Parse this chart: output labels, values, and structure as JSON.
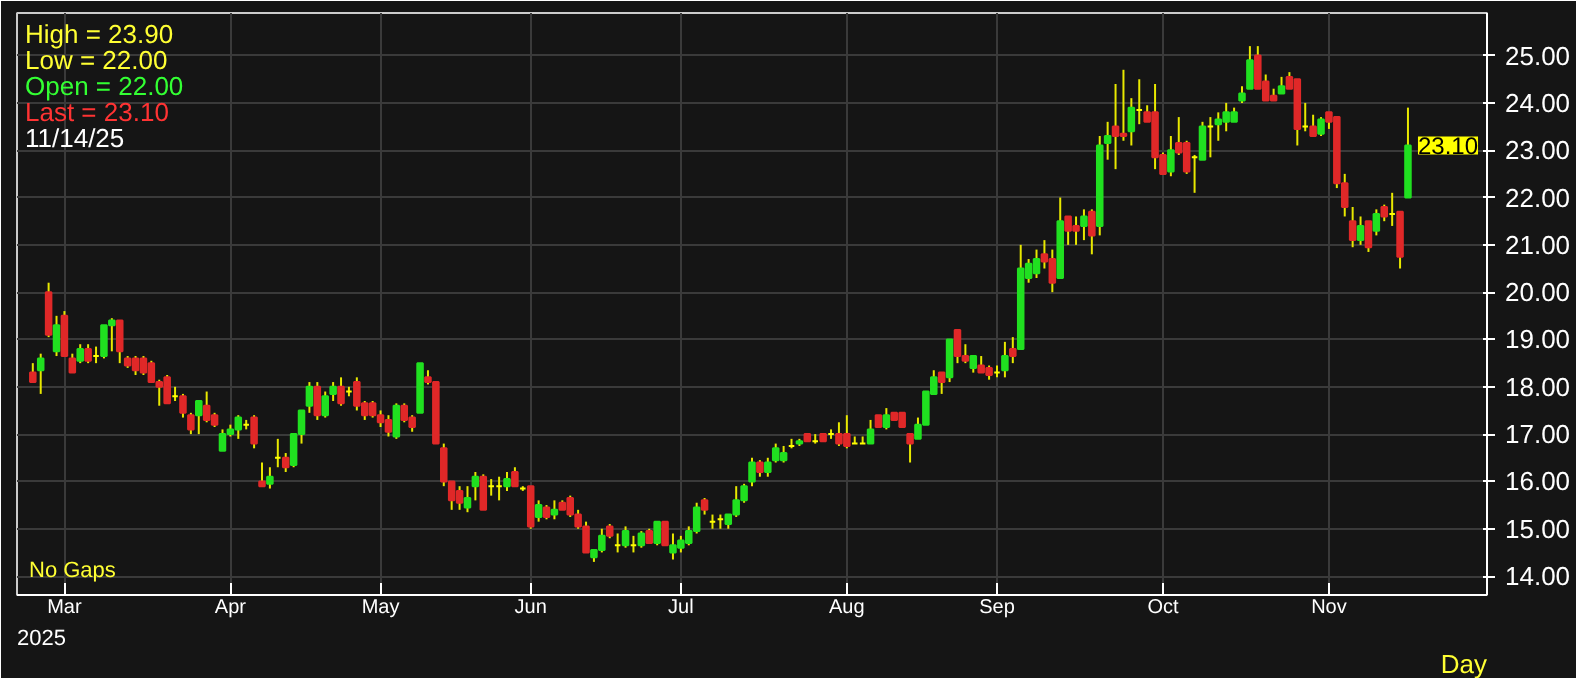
{
  "chart_data": {
    "type": "candlestick",
    "categories": [
      null,
      null,
      null,
      null,
      "Mar",
      null,
      null,
      null,
      null,
      null,
      null,
      null,
      null,
      null,
      null,
      null,
      null,
      null,
      null,
      null,
      null,
      null,
      null,
      null,
      null,
      "Apr",
      null,
      null,
      null,
      null,
      null,
      null,
      null,
      null,
      null,
      null,
      null,
      null,
      null,
      null,
      null,
      null,
      null,
      null,
      "May",
      null,
      null,
      null,
      null,
      null,
      null,
      null,
      null,
      null,
      null,
      null,
      null,
      null,
      null,
      null,
      null,
      null,
      null,
      "Jun",
      null,
      null,
      null,
      null,
      null,
      null,
      null,
      null,
      null,
      null,
      null,
      null,
      null,
      null,
      null,
      null,
      null,
      null,
      "Jul",
      null,
      null,
      null,
      null,
      null,
      null,
      null,
      null,
      null,
      null,
      null,
      null,
      null,
      null,
      null,
      null,
      null,
      null,
      null,
      null,
      "Aug",
      null,
      null,
      null,
      null,
      null,
      null,
      null,
      null,
      null,
      null,
      null,
      null,
      null,
      null,
      null,
      null,
      null,
      null,
      "Sep",
      null,
      null,
      null,
      null,
      null,
      null,
      null,
      null,
      null,
      null,
      null,
      null,
      null,
      null,
      null,
      null,
      null,
      null,
      null,
      null,
      "Oct",
      null,
      null,
      null,
      null,
      null,
      null,
      null,
      null,
      null,
      null,
      null,
      null,
      null,
      null,
      null,
      null,
      null,
      null,
      null,
      null,
      "Nov",
      null,
      null,
      null,
      null,
      null,
      null,
      null,
      null,
      null,
      null
    ],
    "ohlc": [
      [
        18.3,
        18.5,
        18.1,
        18.1
      ],
      [
        18.35,
        18.7,
        17.85,
        18.6
      ],
      [
        20.0,
        20.2,
        19.05,
        19.1
      ],
      [
        18.75,
        19.5,
        18.65,
        19.3
      ],
      [
        19.5,
        19.6,
        18.65,
        18.65
      ],
      [
        18.6,
        18.7,
        18.3,
        18.3
      ],
      [
        18.55,
        18.9,
        18.5,
        18.8
      ],
      [
        18.8,
        18.9,
        18.5,
        18.55
      ],
      [
        18.65,
        18.85,
        18.5,
        18.65
      ],
      [
        18.65,
        19.3,
        18.6,
        19.3
      ],
      [
        19.3,
        19.45,
        18.75,
        19.4
      ],
      [
        19.4,
        19.4,
        18.5,
        18.75
      ],
      [
        18.6,
        18.65,
        18.4,
        18.45
      ],
      [
        18.6,
        18.65,
        18.25,
        18.35
      ],
      [
        18.6,
        18.65,
        18.25,
        18.3
      ],
      [
        18.5,
        18.55,
        18.1,
        18.1
      ],
      [
        18.1,
        18.15,
        17.6,
        18.0
      ],
      [
        18.2,
        18.25,
        17.65,
        17.65
      ],
      [
        17.8,
        18.0,
        17.7,
        17.8
      ],
      [
        17.8,
        17.85,
        17.35,
        17.45
      ],
      [
        17.4,
        17.45,
        17.0,
        17.1
      ],
      [
        17.4,
        17.7,
        17.0,
        17.7
      ],
      [
        17.6,
        17.9,
        17.25,
        17.3
      ],
      [
        17.4,
        17.45,
        17.15,
        17.2
      ],
      [
        16.65,
        17.1,
        16.65,
        17.0
      ],
      [
        17.0,
        17.2,
        16.95,
        17.1
      ],
      [
        17.1,
        17.4,
        16.9,
        17.35
      ],
      [
        17.2,
        17.3,
        17.1,
        17.2
      ],
      [
        17.35,
        17.4,
        16.7,
        16.8
      ],
      [
        16.0,
        16.4,
        15.9,
        15.9
      ],
      [
        15.95,
        16.3,
        15.85,
        16.1
      ],
      [
        16.5,
        16.9,
        16.3,
        16.5
      ],
      [
        16.5,
        16.6,
        16.2,
        16.3
      ],
      [
        16.35,
        17.0,
        16.3,
        17.0
      ],
      [
        17.0,
        17.5,
        16.8,
        17.5
      ],
      [
        17.6,
        18.1,
        17.45,
        18.0
      ],
      [
        18.0,
        18.1,
        17.3,
        17.4
      ],
      [
        17.4,
        17.9,
        17.35,
        17.8
      ],
      [
        17.85,
        18.1,
        17.7,
        18.0
      ],
      [
        18.0,
        18.2,
        17.6,
        17.65
      ],
      [
        17.9,
        18.0,
        17.8,
        17.9
      ],
      [
        18.1,
        18.2,
        17.5,
        17.6
      ],
      [
        17.65,
        17.7,
        17.3,
        17.4
      ],
      [
        17.65,
        17.7,
        17.35,
        17.4
      ],
      [
        17.4,
        17.5,
        17.15,
        17.25
      ],
      [
        17.3,
        17.4,
        16.95,
        17.05
      ],
      [
        16.95,
        17.65,
        16.9,
        17.6
      ],
      [
        17.6,
        17.65,
        17.25,
        17.3
      ],
      [
        17.35,
        17.4,
        17.05,
        17.15
      ],
      [
        17.45,
        18.5,
        17.45,
        18.5
      ],
      [
        18.2,
        18.35,
        18.05,
        18.1
      ],
      [
        18.1,
        18.1,
        16.8,
        16.8
      ],
      [
        16.7,
        16.8,
        15.9,
        16.0
      ],
      [
        16.0,
        16.0,
        15.4,
        15.6
      ],
      [
        15.8,
        15.9,
        15.4,
        15.55
      ],
      [
        15.45,
        15.9,
        15.35,
        15.65
      ],
      [
        15.9,
        16.2,
        15.6,
        16.1
      ],
      [
        16.1,
        16.15,
        15.4,
        15.4
      ],
      [
        15.9,
        16.05,
        15.7,
        15.9
      ],
      [
        15.9,
        16.1,
        15.6,
        15.9
      ],
      [
        15.9,
        16.2,
        15.8,
        16.05
      ],
      [
        16.2,
        16.3,
        15.9,
        15.9
      ],
      [
        15.85,
        15.9,
        15.8,
        15.85
      ],
      [
        15.9,
        15.9,
        15.0,
        15.05
      ],
      [
        15.25,
        15.6,
        15.15,
        15.5
      ],
      [
        15.45,
        15.5,
        15.2,
        15.25
      ],
      [
        15.3,
        15.6,
        15.2,
        15.4
      ],
      [
        15.55,
        15.6,
        15.4,
        15.4
      ],
      [
        15.65,
        15.7,
        15.25,
        15.3
      ],
      [
        15.3,
        15.4,
        15.0,
        15.05
      ],
      [
        15.05,
        15.15,
        14.5,
        14.5
      ],
      [
        14.4,
        14.55,
        14.3,
        14.55
      ],
      [
        14.55,
        15.0,
        14.5,
        14.85
      ],
      [
        15.05,
        15.1,
        14.8,
        14.85
      ],
      [
        14.65,
        14.9,
        14.5,
        14.65
      ],
      [
        14.65,
        15.05,
        14.6,
        14.95
      ],
      [
        14.65,
        14.85,
        14.5,
        14.65
      ],
      [
        14.65,
        14.95,
        14.6,
        14.9
      ],
      [
        14.95,
        15.0,
        14.7,
        14.7
      ],
      [
        14.7,
        15.15,
        14.65,
        15.15
      ],
      [
        15.15,
        15.15,
        14.65,
        14.65
      ],
      [
        14.5,
        14.9,
        14.35,
        14.65
      ],
      [
        14.6,
        14.85,
        14.5,
        14.75
      ],
      [
        14.7,
        15.05,
        14.65,
        14.95
      ],
      [
        14.95,
        15.55,
        14.9,
        15.45
      ],
      [
        15.6,
        15.65,
        15.3,
        15.4
      ],
      [
        15.15,
        15.3,
        15.0,
        15.15
      ],
      [
        15.2,
        15.3,
        15.0,
        15.2
      ],
      [
        15.1,
        15.3,
        15.0,
        15.3
      ],
      [
        15.3,
        15.9,
        15.25,
        15.6
      ],
      [
        15.6,
        15.95,
        15.55,
        15.9
      ],
      [
        16.0,
        16.5,
        15.9,
        16.4
      ],
      [
        16.4,
        16.45,
        16.1,
        16.2
      ],
      [
        16.2,
        16.5,
        16.1,
        16.4
      ],
      [
        16.45,
        16.8,
        16.4,
        16.7
      ],
      [
        16.45,
        16.75,
        16.4,
        16.6
      ],
      [
        16.75,
        16.9,
        16.7,
        16.75
      ],
      [
        16.8,
        16.9,
        16.75,
        16.85
      ],
      [
        17.0,
        17.0,
        16.85,
        16.85
      ],
      [
        16.85,
        17.0,
        16.8,
        16.85
      ],
      [
        17.0,
        17.0,
        16.85,
        16.85
      ],
      [
        17.0,
        17.1,
        16.9,
        17.0
      ],
      [
        17.0,
        17.25,
        16.75,
        16.8
      ],
      [
        17.0,
        17.4,
        16.7,
        16.75
      ],
      [
        16.8,
        16.95,
        16.8,
        16.8
      ],
      [
        16.8,
        16.95,
        16.8,
        16.8
      ],
      [
        16.8,
        17.3,
        16.8,
        17.1
      ],
      [
        17.4,
        17.4,
        17.15,
        17.15
      ],
      [
        17.15,
        17.55,
        17.1,
        17.4
      ],
      [
        17.45,
        17.45,
        17.3,
        17.3
      ],
      [
        17.45,
        17.45,
        17.15,
        17.15
      ],
      [
        17.0,
        17.0,
        16.4,
        16.8
      ],
      [
        16.9,
        17.35,
        16.9,
        17.2
      ],
      [
        17.2,
        17.9,
        17.2,
        17.9
      ],
      [
        17.85,
        18.35,
        17.85,
        18.2
      ],
      [
        18.3,
        18.3,
        17.85,
        18.1
      ],
      [
        18.2,
        19.0,
        18.1,
        19.0
      ],
      [
        19.2,
        19.2,
        18.5,
        18.65
      ],
      [
        18.65,
        18.9,
        18.5,
        18.55
      ],
      [
        18.4,
        18.65,
        18.3,
        18.65
      ],
      [
        18.45,
        18.65,
        18.3,
        18.3
      ],
      [
        18.4,
        18.45,
        18.15,
        18.25
      ],
      [
        18.3,
        18.45,
        18.2,
        18.3
      ],
      [
        18.35,
        18.95,
        18.2,
        18.65
      ],
      [
        18.8,
        19.05,
        18.5,
        18.65
      ],
      [
        18.8,
        21.0,
        18.8,
        20.5
      ],
      [
        20.3,
        20.7,
        20.2,
        20.6
      ],
      [
        20.4,
        20.9,
        20.3,
        20.7
      ],
      [
        20.8,
        21.1,
        20.5,
        20.65
      ],
      [
        20.7,
        20.9,
        20.0,
        20.2
      ],
      [
        20.3,
        22.0,
        20.3,
        21.5
      ],
      [
        21.6,
        21.6,
        21.0,
        21.3
      ],
      [
        21.4,
        21.6,
        21.0,
        21.3
      ],
      [
        21.4,
        21.75,
        21.1,
        21.6
      ],
      [
        21.7,
        21.75,
        20.8,
        21.2
      ],
      [
        21.4,
        23.3,
        21.2,
        23.1
      ],
      [
        23.15,
        23.6,
        22.8,
        23.3
      ],
      [
        23.5,
        24.4,
        22.6,
        23.3
      ],
      [
        23.35,
        24.7,
        23.2,
        23.3
      ],
      [
        23.4,
        24.1,
        23.1,
        23.9
      ],
      [
        23.85,
        24.5,
        23.55,
        23.85
      ],
      [
        23.8,
        23.95,
        23.6,
        23.6
      ],
      [
        23.8,
        24.4,
        22.6,
        22.85
      ],
      [
        22.9,
        22.95,
        22.5,
        22.5
      ],
      [
        22.55,
        23.3,
        22.45,
        23.0
      ],
      [
        23.15,
        23.7,
        22.9,
        22.95
      ],
      [
        23.15,
        23.2,
        22.5,
        22.55
      ],
      [
        22.85,
        22.9,
        22.1,
        22.85
      ],
      [
        22.8,
        23.6,
        22.8,
        23.5
      ],
      [
        23.5,
        23.7,
        22.85,
        23.5
      ],
      [
        23.55,
        23.8,
        23.2,
        23.65
      ],
      [
        23.6,
        24.0,
        23.4,
        23.8
      ],
      [
        23.6,
        23.9,
        23.6,
        23.8
      ],
      [
        24.05,
        24.35,
        24.0,
        24.2
      ],
      [
        24.3,
        25.2,
        24.3,
        24.9
      ],
      [
        25.0,
        25.2,
        24.3,
        24.3
      ],
      [
        24.45,
        24.6,
        24.05,
        24.05
      ],
      [
        24.15,
        24.3,
        24.05,
        24.05
      ],
      [
        24.2,
        24.55,
        24.2,
        24.35
      ],
      [
        24.55,
        24.65,
        24.3,
        24.3
      ],
      [
        24.5,
        24.5,
        23.1,
        23.45
      ],
      [
        23.5,
        24.0,
        23.4,
        23.5
      ],
      [
        23.5,
        23.75,
        23.3,
        23.3
      ],
      [
        23.35,
        23.7,
        23.3,
        23.65
      ],
      [
        23.8,
        23.8,
        23.45,
        23.6
      ],
      [
        23.7,
        23.7,
        22.2,
        22.3
      ],
      [
        22.3,
        22.5,
        21.6,
        21.8
      ],
      [
        21.5,
        21.8,
        20.95,
        21.1
      ],
      [
        21.1,
        21.6,
        21.0,
        21.4
      ],
      [
        21.5,
        21.5,
        20.85,
        20.95
      ],
      [
        21.3,
        21.75,
        21.2,
        21.65
      ],
      [
        21.8,
        21.85,
        21.5,
        21.6
      ],
      [
        21.65,
        22.1,
        21.4,
        21.65
      ],
      [
        21.7,
        21.7,
        20.5,
        20.75
      ],
      [
        22.0,
        23.9,
        22.0,
        23.1
      ]
    ],
    "colors": [
      "#e02828",
      "#20e020",
      "#e02828",
      "#20e020",
      "#e02828",
      "#e02828",
      "#20e020",
      "#e02828",
      "#ffff00",
      "#20e020",
      "#20e020",
      "#e02828",
      "#e02828",
      "#e02828",
      "#e02828",
      "#e02828",
      "#e02828",
      "#e02828",
      "#ffff00",
      "#e02828",
      "#e02828",
      "#20e020",
      "#e02828",
      "#e02828",
      "#20e020",
      "#20e020",
      "#20e020",
      "#ffff00",
      "#e02828",
      "#e02828",
      "#20e020",
      "#ffff00",
      "#e02828",
      "#20e020",
      "#20e020",
      "#20e020",
      "#e02828",
      "#20e020",
      "#20e020",
      "#e02828",
      "#ffff00",
      "#e02828",
      "#e02828",
      "#e02828",
      "#e02828",
      "#e02828",
      "#20e020",
      "#e02828",
      "#e02828",
      "#20e020",
      "#e02828",
      "#e02828",
      "#e02828",
      "#e02828",
      "#e02828",
      "#20e020",
      "#20e020",
      "#e02828",
      "#ffff00",
      "#ffff00",
      "#20e020",
      "#e02828",
      "#ffff00",
      "#e02828",
      "#20e020",
      "#e02828",
      "#20e020",
      "#e02828",
      "#e02828",
      "#e02828",
      "#e02828",
      "#20e020",
      "#20e020",
      "#e02828",
      "#ffff00",
      "#20e020",
      "#ffff00",
      "#20e020",
      "#e02828",
      "#20e020",
      "#e02828",
      "#20e020",
      "#20e020",
      "#20e020",
      "#20e020",
      "#e02828",
      "#ffff00",
      "#ffff00",
      "#20e020",
      "#20e020",
      "#20e020",
      "#20e020",
      "#e02828",
      "#20e020",
      "#20e020",
      "#20e020",
      "#ffff00",
      "#20e020",
      "#e02828",
      "#ffff00",
      "#e02828",
      "#ffff00",
      "#e02828",
      "#e02828",
      "#ffff00",
      "#ffff00",
      "#20e020",
      "#e02828",
      "#20e020",
      "#e02828",
      "#e02828",
      "#e02828",
      "#20e020",
      "#20e020",
      "#20e020",
      "#e02828",
      "#20e020",
      "#e02828",
      "#e02828",
      "#20e020",
      "#e02828",
      "#e02828",
      "#ffff00",
      "#20e020",
      "#e02828",
      "#20e020",
      "#20e020",
      "#20e020",
      "#e02828",
      "#e02828",
      "#20e020",
      "#e02828",
      "#e02828",
      "#20e020",
      "#e02828",
      "#20e020",
      "#20e020",
      "#e02828",
      "#e02828",
      "#20e020",
      "#ffff00",
      "#e02828",
      "#e02828",
      "#e02828",
      "#20e020",
      "#e02828",
      "#e02828",
      "#ffff00",
      "#20e020",
      "#ffff00",
      "#20e020",
      "#20e020",
      "#20e020",
      "#20e020",
      "#20e020",
      "#e02828",
      "#e02828",
      "#e02828",
      "#20e020",
      "#e02828",
      "#e02828",
      "#ffff00",
      "#e02828",
      "#20e020",
      "#e02828",
      "#e02828",
      "#e02828",
      "#e02828",
      "#20e020",
      "#e02828",
      "#20e020",
      "#e02828",
      "#ffff00",
      "#e02828",
      "#20e020"
    ],
    "ylim": [
      13.6,
      25.9
    ],
    "yticks": [
      {
        "value": 14,
        "label": "14.00"
      },
      {
        "value": 15,
        "label": "15.00"
      },
      {
        "value": 16,
        "label": "16.00"
      },
      {
        "value": 17,
        "label": "17.00"
      },
      {
        "value": 18,
        "label": "18.00"
      },
      {
        "value": 19,
        "label": "19.00"
      },
      {
        "value": 20,
        "label": "20.00"
      },
      {
        "value": 21,
        "label": "21.00"
      },
      {
        "value": 22,
        "label": "22.00"
      },
      {
        "value": 23,
        "label": "23.00"
      },
      {
        "value": 24,
        "label": "24.00"
      },
      {
        "value": 25,
        "label": "25.00"
      }
    ],
    "grid": true,
    "annotations": [
      "High   =  23.90",
      "Low    =  22.00",
      "Open  =  22.00",
      "Last   =  23.10",
      "11/14/25",
      "No Gaps",
      "2025",
      "Day",
      "23.10"
    ]
  }
}
